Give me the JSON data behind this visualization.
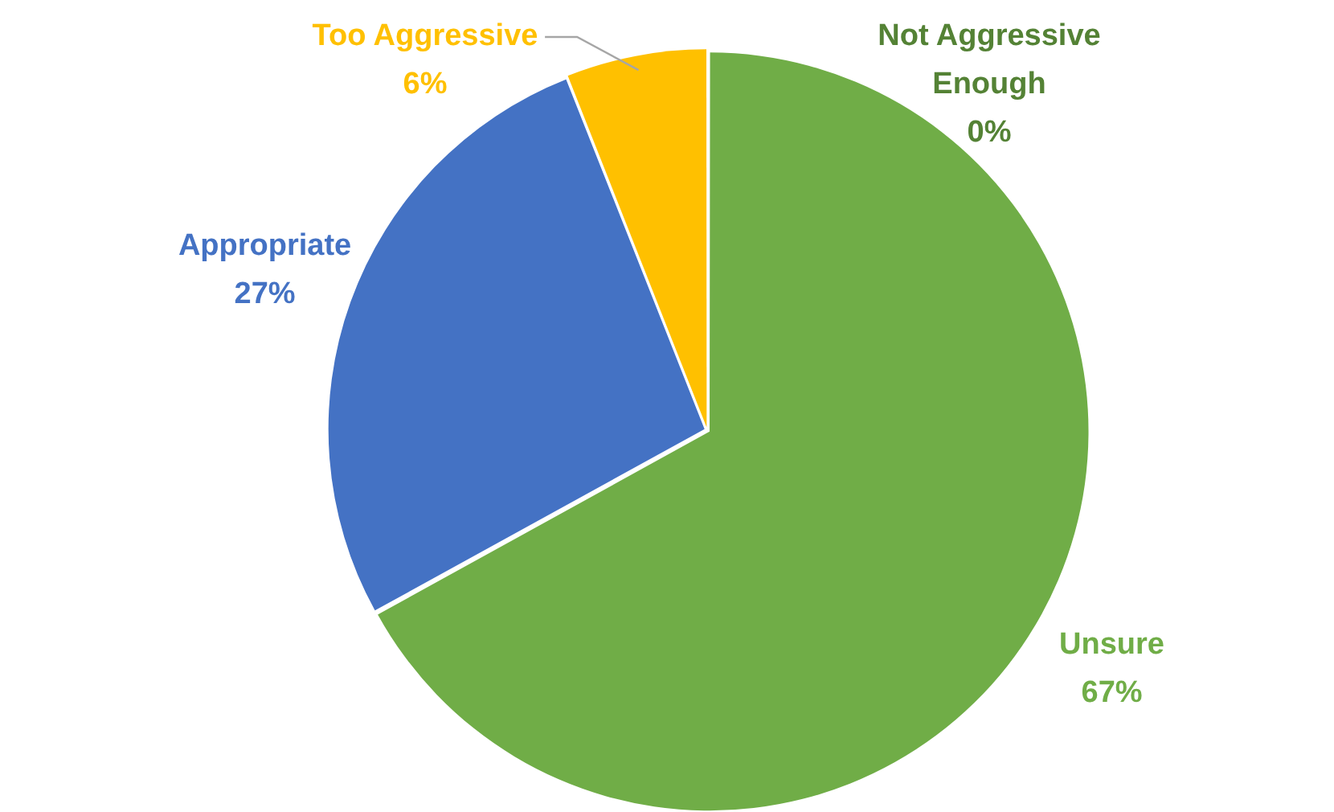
{
  "chart_data": {
    "type": "pie",
    "categories": [
      "Unsure",
      "Appropriate",
      "Too Aggressive",
      "Not Aggressive Enough"
    ],
    "values": [
      67,
      27,
      6,
      0
    ],
    "value_labels": [
      "67%",
      "27%",
      "6%",
      "0%"
    ],
    "colors": [
      "#70ad47",
      "#4472c4",
      "#ffc000",
      "#548235"
    ],
    "legend": false
  }
}
